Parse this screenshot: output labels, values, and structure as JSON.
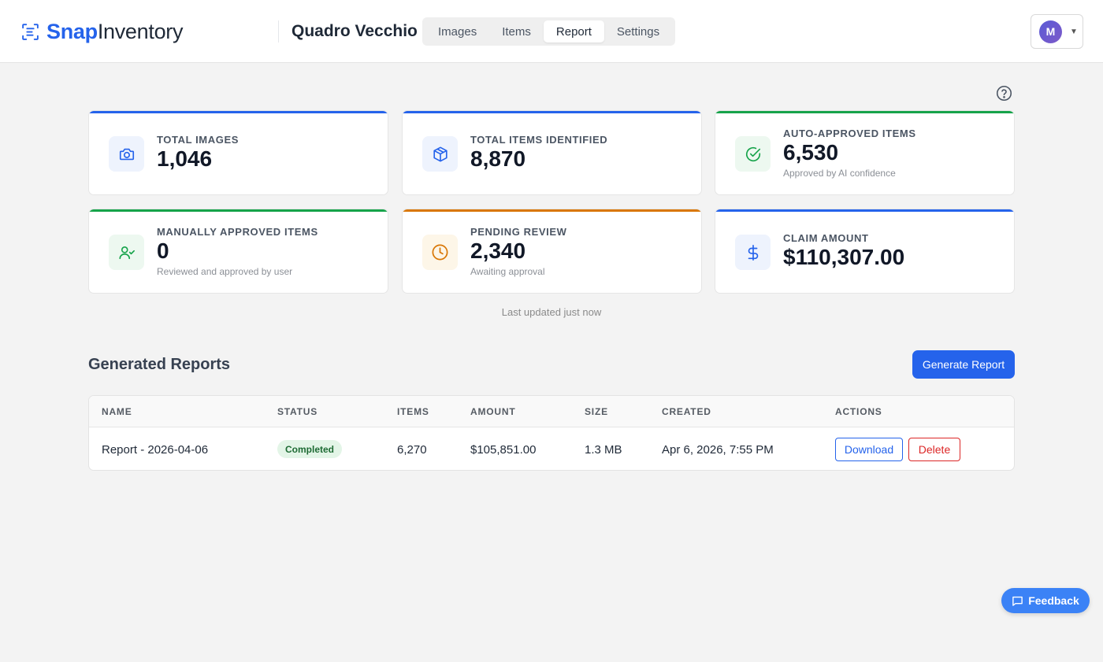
{
  "header": {
    "logo": {
      "part1": "Snap",
      "part2": "Inventory",
      "icon": "scan-document-icon"
    },
    "project_name": "Quadro Vecchio",
    "tabs": [
      {
        "label": "Images",
        "active": false
      },
      {
        "label": "Items",
        "active": false
      },
      {
        "label": "Report",
        "active": true
      },
      {
        "label": "Settings",
        "active": false
      }
    ],
    "user": {
      "initial": "M",
      "caret": "▼"
    }
  },
  "help": {
    "icon": "help-circle-icon"
  },
  "stats": [
    {
      "label": "TOTAL IMAGES",
      "value": "1,046",
      "sub": "",
      "icon": "camera-icon",
      "accent": "#2563eb",
      "icon_bg": "#eef3fd",
      "icon_color": "#2563eb"
    },
    {
      "label": "TOTAL ITEMS IDENTIFIED",
      "value": "8,870",
      "sub": "",
      "icon": "box-icon",
      "accent": "#2563eb",
      "icon_bg": "#eef3fd",
      "icon_color": "#2563eb"
    },
    {
      "label": "AUTO-APPROVED ITEMS",
      "value": "6,530",
      "sub": "Approved by AI confidence",
      "icon": "check-circle-icon",
      "accent": "#16a34a",
      "icon_bg": "#edf8f0",
      "icon_color": "#16a34a"
    },
    {
      "label": "MANUALLY APPROVED ITEMS",
      "value": "0",
      "sub": "Reviewed and approved by user",
      "icon": "user-check-icon",
      "accent": "#16a34a",
      "icon_bg": "#edf8f0",
      "icon_color": "#16a34a"
    },
    {
      "label": "PENDING REVIEW",
      "value": "2,340",
      "sub": "Awaiting approval",
      "icon": "clock-icon",
      "accent": "#d97706",
      "icon_bg": "#fdf6e8",
      "icon_color": "#d97706"
    },
    {
      "label": "CLAIM AMOUNT",
      "value": "$110,307.00",
      "sub": "",
      "icon": "dollar-icon",
      "accent": "#2563eb",
      "icon_bg": "#eef3fd",
      "icon_color": "#2563eb"
    }
  ],
  "updated": "Last updated just now",
  "reports": {
    "title": "Generated Reports",
    "generate_label": "Generate Report",
    "columns": [
      "NAME",
      "STATUS",
      "ITEMS",
      "AMOUNT",
      "SIZE",
      "CREATED",
      "ACTIONS"
    ],
    "rows": [
      {
        "name": "Report - 2026-04-06",
        "status": "Completed",
        "items": "6,270",
        "amount": "$105,851.00",
        "size": "1.3 MB",
        "created": "Apr 6, 2026, 7:55 PM",
        "download_label": "Download",
        "delete_label": "Delete"
      }
    ]
  },
  "feedback": {
    "label": "Feedback",
    "icon": "message-square-icon"
  }
}
